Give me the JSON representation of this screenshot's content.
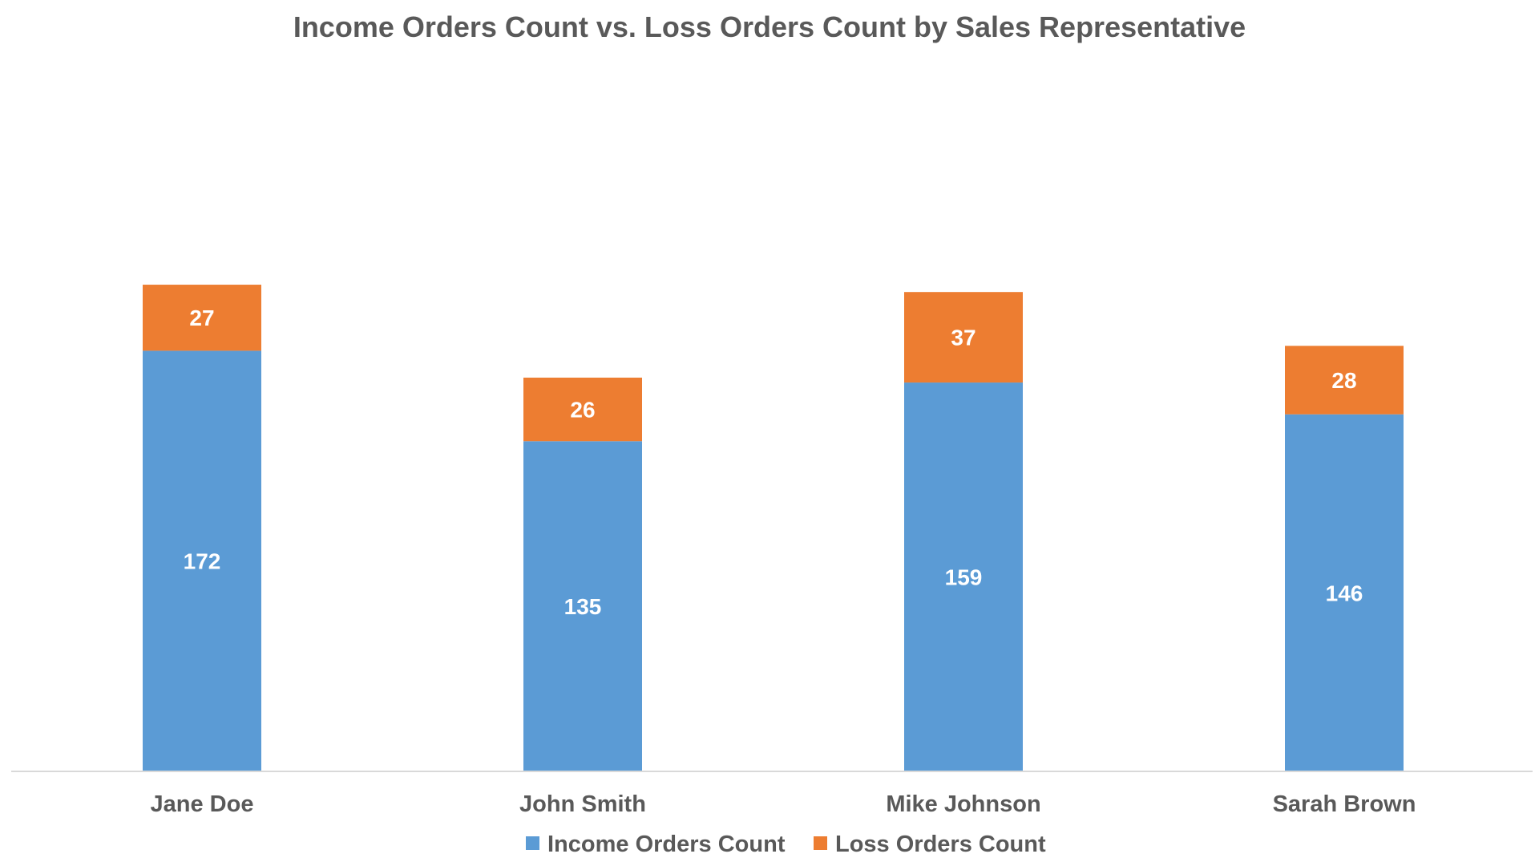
{
  "chart_data": {
    "type": "bar",
    "stacked": true,
    "title": "Income Orders Count vs. Loss Orders Count by Sales Representative",
    "xlabel": "",
    "ylabel": "",
    "categories": [
      "Jane Doe",
      "John Smith",
      "Mike Johnson",
      "Sarah Brown"
    ],
    "series": [
      {
        "name": "Income Orders Count",
        "values": [
          172,
          135,
          159,
          146
        ],
        "color": "#5B9BD5"
      },
      {
        "name": "Loss Orders Count",
        "values": [
          27,
          26,
          37,
          28
        ],
        "color": "#ED7D31"
      }
    ],
    "ylim": [
      0,
      230
    ],
    "grid": false,
    "y_axis_visible": false,
    "data_labels": true,
    "legend_position": "bottom"
  }
}
